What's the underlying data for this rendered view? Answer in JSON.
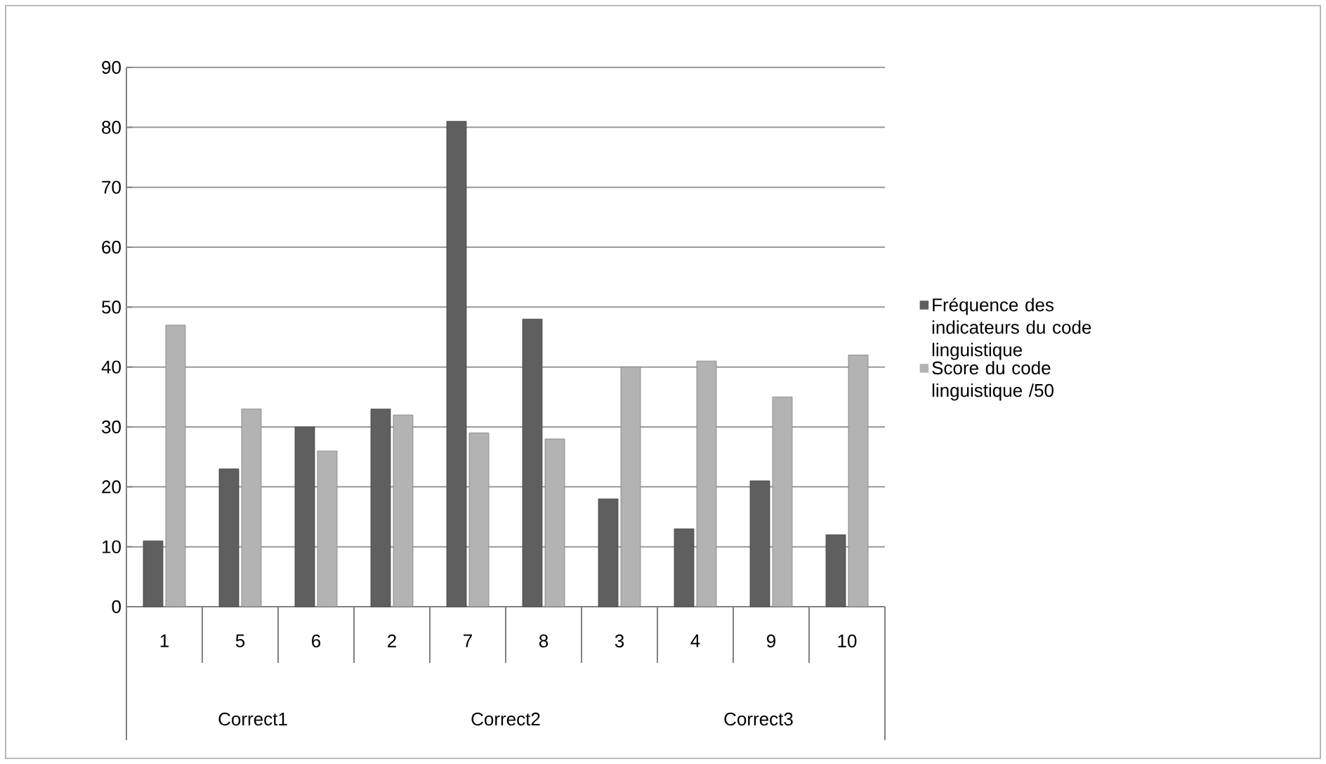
{
  "chart_data": {
    "type": "bar",
    "categories": [
      "1",
      "5",
      "6",
      "2",
      "7",
      "8",
      "3",
      "4",
      "9",
      "10"
    ],
    "series": [
      {
        "name": "Fréquence des indicateurs du code linguistique",
        "color": "#5f5f5f",
        "values": [
          11,
          23,
          30,
          33,
          81,
          48,
          18,
          13,
          21,
          12
        ]
      },
      {
        "name": "Score du code linguistique /50",
        "color": "#b3b3b3",
        "values": [
          47,
          33,
          26,
          32,
          29,
          28,
          40,
          41,
          35,
          42
        ]
      }
    ],
    "ylim": [
      0,
      90
    ],
    "yticks": [
      0,
      10,
      20,
      30,
      40,
      50,
      60,
      70,
      80,
      90
    ],
    "grid": "y",
    "legend": "right",
    "annotations": [
      "Correct1",
      "Correct2",
      "Correct3"
    ]
  }
}
